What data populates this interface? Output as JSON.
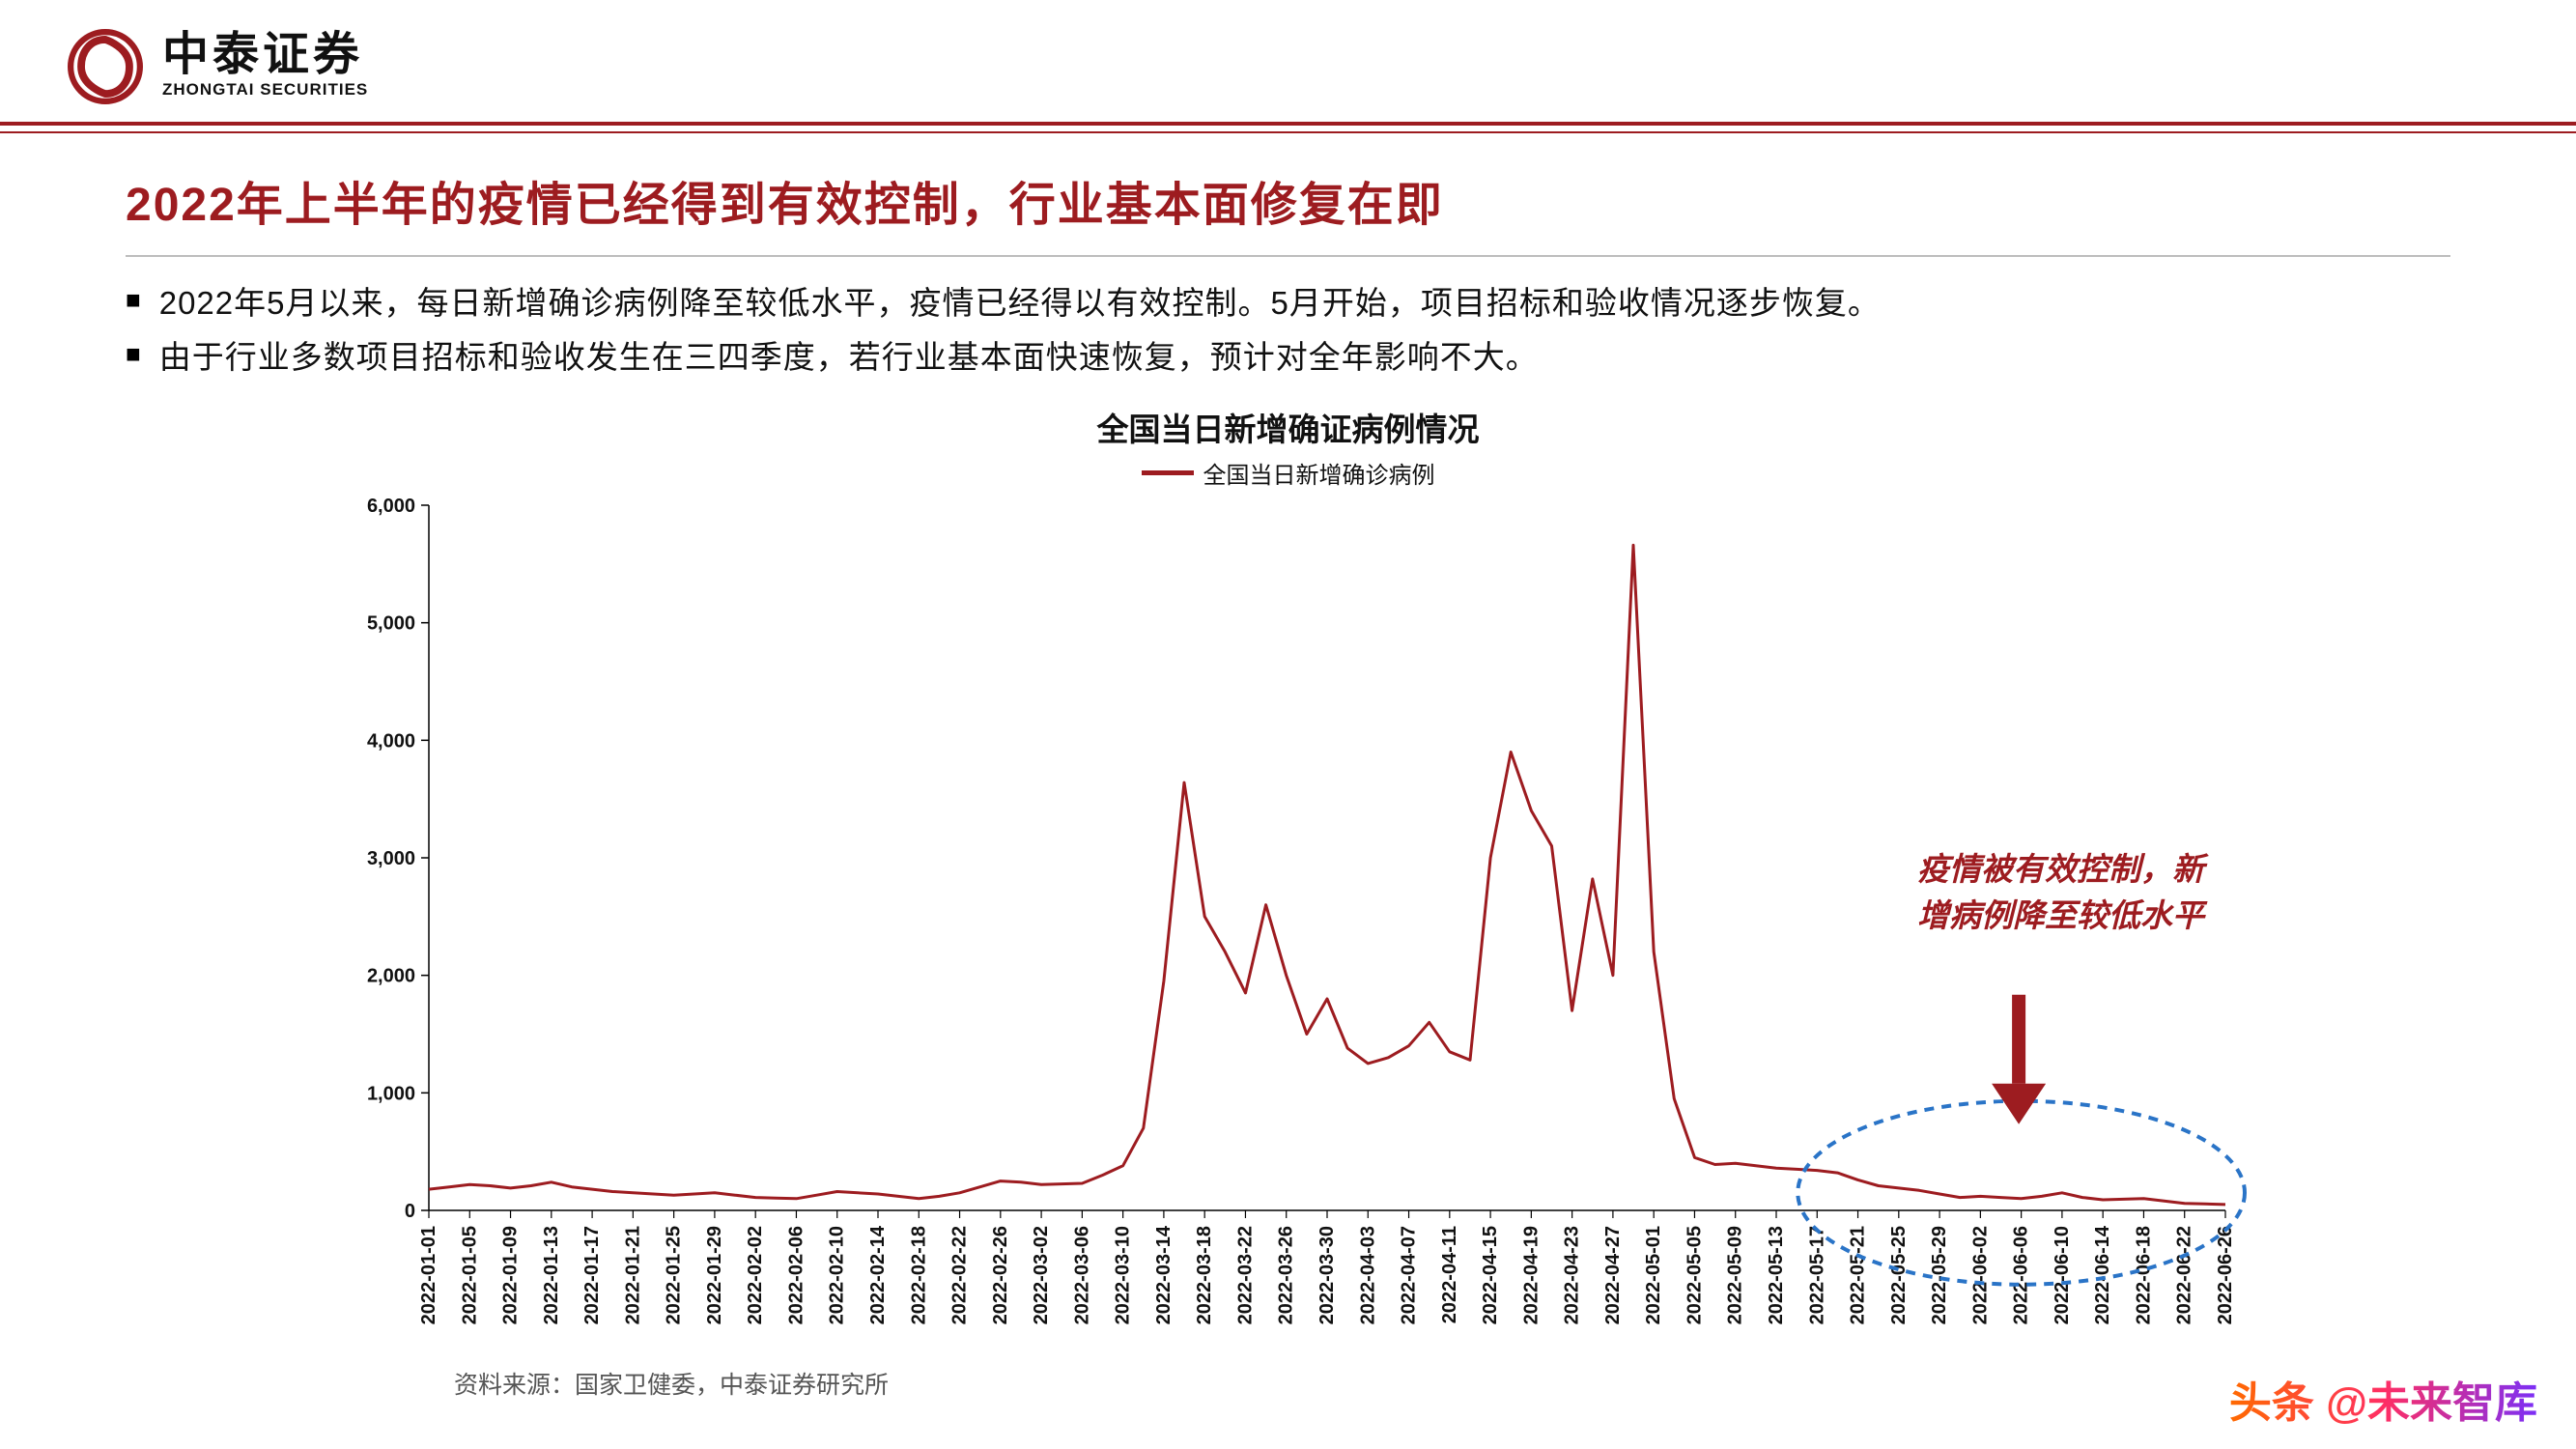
{
  "logo": {
    "cn": "中泰证券",
    "en": "ZHONGTAI SECURITIES",
    "mark_color": "#9d1c20"
  },
  "accent_color": "#9d1c20",
  "title": "2022年上半年的疫情已经得到有效控制，行业基本面修复在即",
  "bullets": [
    "2022年5月以来，每日新增确诊病例降至较低水平，疫情已经得以有效控制。5月开始，项目招标和验收情况逐步恢复。",
    "由于行业多数项目招标和验收发生在三四季度，若行业基本面快速恢复，预计对全年影响不大。"
  ],
  "chart": {
    "type": "line",
    "title": "全国当日新增确证病例情况",
    "legend_label": "全国当日新增确诊病例",
    "series_color": "#9d1c20",
    "background_color": "#ffffff",
    "line_width": 3,
    "ylim": [
      0,
      6000
    ],
    "ytick_step": 1000,
    "ytick_labels": [
      "0",
      "1,000",
      "2,000",
      "3,000",
      "4,000",
      "5,000",
      "6,000"
    ],
    "label_fontsize": 20,
    "tick_fontsize": 20,
    "tick_color": "#111111",
    "x_dates": [
      "2022-01-01",
      "2022-01-05",
      "2022-01-09",
      "2022-01-13",
      "2022-01-17",
      "2022-01-21",
      "2022-01-25",
      "2022-01-29",
      "2022-02-02",
      "2022-02-06",
      "2022-02-10",
      "2022-02-14",
      "2022-02-18",
      "2022-02-22",
      "2022-02-26",
      "2022-03-02",
      "2022-03-06",
      "2022-03-10",
      "2022-03-14",
      "2022-03-18",
      "2022-03-22",
      "2022-03-26",
      "2022-03-30",
      "2022-04-03",
      "2022-04-07",
      "2022-04-11",
      "2022-04-15",
      "2022-04-19",
      "2022-04-23",
      "2022-04-27",
      "2022-05-01",
      "2022-05-05",
      "2022-05-09",
      "2022-05-13",
      "2022-05-17",
      "2022-05-21",
      "2022-05-25",
      "2022-05-29",
      "2022-06-02",
      "2022-06-06",
      "2022-06-10",
      "2022-06-14",
      "2022-06-18",
      "2022-06-22",
      "2022-06-26"
    ],
    "values": [
      180,
      220,
      190,
      240,
      180,
      150,
      130,
      150,
      110,
      100,
      160,
      140,
      100,
      150,
      250,
      220,
      230,
      380,
      3640,
      2200,
      2600,
      1500,
      1380,
      1300,
      1600,
      1280,
      3900,
      3100,
      2820,
      5660,
      950,
      390,
      380,
      350,
      320,
      210,
      170,
      110,
      120,
      100,
      150,
      90,
      100,
      60,
      50
    ],
    "values_fine": [
      180,
      200,
      220,
      210,
      190,
      210,
      240,
      200,
      180,
      160,
      150,
      140,
      130,
      140,
      150,
      130,
      110,
      105,
      100,
      130,
      160,
      150,
      140,
      120,
      100,
      120,
      150,
      200,
      250,
      240,
      220,
      225,
      230,
      300,
      380,
      700,
      1950,
      3640,
      2500,
      2200,
      1850,
      2600,
      2000,
      1500,
      1800,
      1380,
      1250,
      1300,
      1400,
      1600,
      1350,
      1280,
      3000,
      3900,
      3400,
      3100,
      1700,
      2820,
      2000,
      5660,
      2200,
      950,
      450,
      390,
      400,
      380,
      360,
      350,
      340,
      320,
      260,
      210,
      190,
      170,
      140,
      110,
      120,
      110,
      100,
      120,
      150,
      110,
      90,
      95,
      100,
      80,
      60,
      55,
      50
    ],
    "annotation": {
      "text_line1": "疫情被有效控制，新",
      "text_line2": "增病例降至较低水平",
      "arrow_color": "#9d1c20",
      "highlight_ellipse_color": "#2a74c7",
      "ellipse_dash": "10 8"
    }
  },
  "source": "资料来源：国家卫健委，中泰证券研究所",
  "watermark": "头条 @未来智库"
}
